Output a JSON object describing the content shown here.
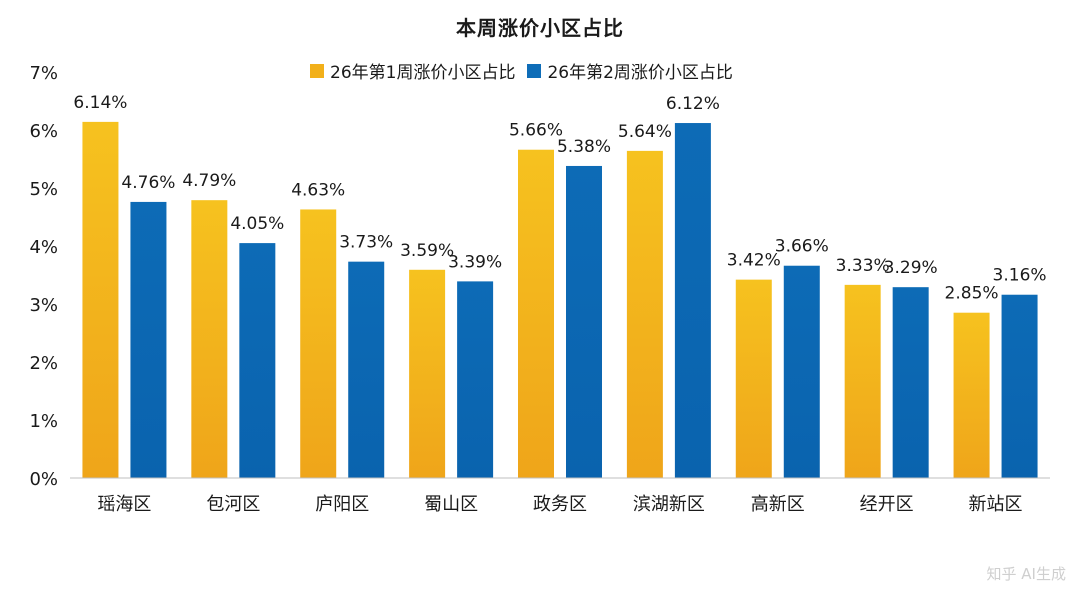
{
  "chart_data": {
    "type": "bar",
    "title": "本周涨价小区占比",
    "categories": [
      "瑶海区",
      "包河区",
      "庐阳区",
      "蜀山区",
      "政务区",
      "滨湖新区",
      "高新区",
      "经开区",
      "新站区"
    ],
    "series": [
      {
        "name": "26年第1周涨价小区占比",
        "color": "#F2B01A",
        "values": [
          6.14,
          4.79,
          4.63,
          3.59,
          5.66,
          5.64,
          3.42,
          3.33,
          2.85
        ],
        "labels": [
          "6.14%",
          "4.79%",
          "4.63%",
          "3.59%",
          "5.66%",
          "5.64%",
          "3.42%",
          "3.33%",
          "2.85%"
        ]
      },
      {
        "name": "26年第2周涨价小区占比",
        "color": "#0E6DB8",
        "values": [
          4.76,
          4.05,
          3.73,
          3.39,
          5.38,
          6.12,
          3.66,
          3.29,
          3.16
        ],
        "labels": [
          "4.76%",
          "4.05%",
          "3.73%",
          "3.39%",
          "5.38%",
          "6.12%",
          "3.66%",
          "3.29%",
          "3.16%"
        ]
      }
    ],
    "ylim": [
      0,
      7
    ],
    "yticks": [
      "0%",
      "1%",
      "2%",
      "3%",
      "4%",
      "5%",
      "6%",
      "7%"
    ],
    "legend_position": "top-center",
    "grid": false
  },
  "watermark": "知乎 AI生成"
}
